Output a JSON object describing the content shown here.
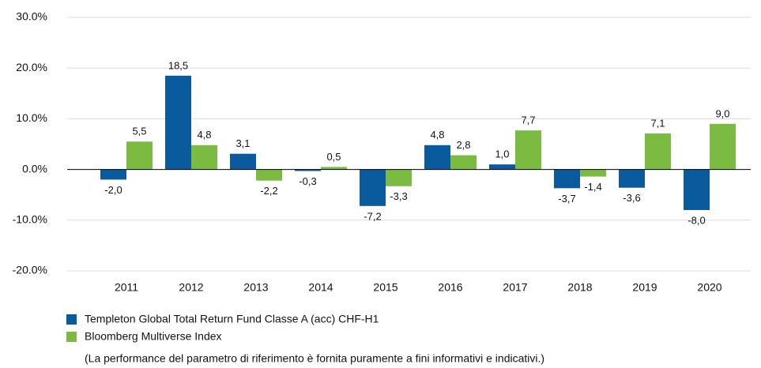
{
  "chart_data": {
    "type": "bar",
    "categories": [
      "2011",
      "2012",
      "2013",
      "2014",
      "2015",
      "2016",
      "2017",
      "2018",
      "2019",
      "2020"
    ],
    "series": [
      {
        "name": "Templeton Global Total Return Fund Classe A (acc) CHF-H1",
        "color": "#0a5a9e",
        "values": [
          -2.0,
          18.5,
          3.1,
          -0.3,
          -7.2,
          4.8,
          1.0,
          -3.7,
          -3.6,
          -8.0
        ],
        "value_labels": [
          "-2,0",
          "18,5",
          "3,1",
          "-0,3",
          "-7,2",
          "4,8",
          "1,0",
          "-3,7",
          "-3,6",
          "-8,0"
        ]
      },
      {
        "name": "Bloomberg Multiverse Index",
        "color": "#7cbb42",
        "values": [
          5.5,
          4.8,
          -2.2,
          0.5,
          -3.3,
          2.8,
          7.7,
          -1.4,
          7.1,
          9.0
        ],
        "value_labels": [
          "5,5",
          "4,8",
          "-2,2",
          "0,5",
          "-3,3",
          "2,8",
          "7,7",
          "-1,4",
          "7,1",
          "9,0"
        ]
      }
    ],
    "ylim": [
      -20,
      30
    ],
    "yticks": [
      {
        "value": -20,
        "label": "-20.0%"
      },
      {
        "value": -10,
        "label": "-10.0%"
      },
      {
        "value": 0,
        "label": "0.0%"
      },
      {
        "value": 10,
        "label": "10.0%"
      },
      {
        "value": 20,
        "label": "20.0%"
      },
      {
        "value": 30,
        "label": "30.0%"
      }
    ],
    "grid": true,
    "note": "(La performance del parametro di riferimento è fornita puramente a fini informativi e indicativi.)"
  }
}
